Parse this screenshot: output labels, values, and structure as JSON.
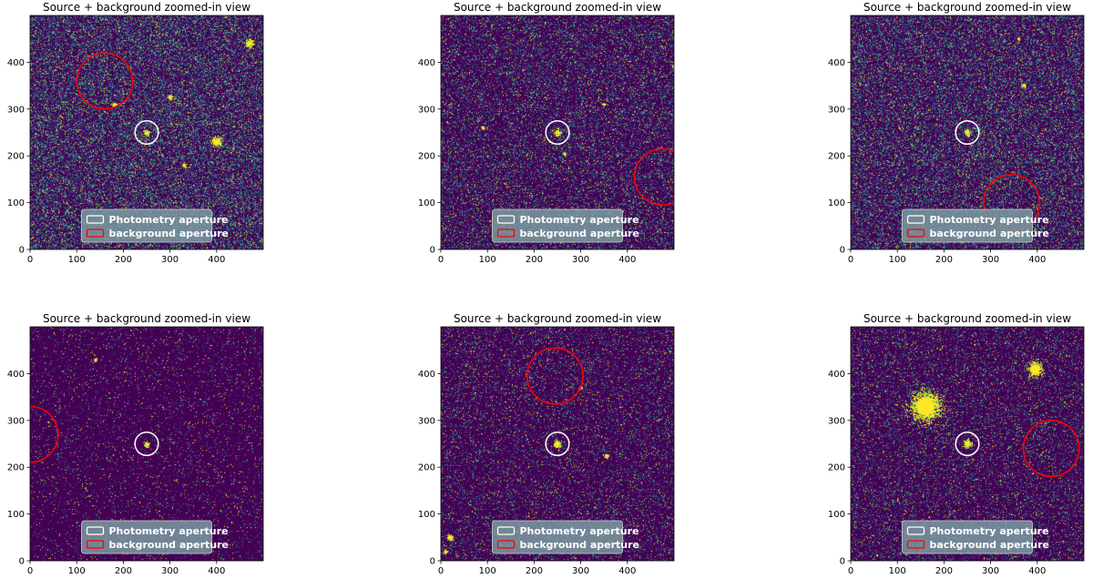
{
  "chart_data": [
    {
      "type": "heatmap",
      "title": "Source + background zoomed-in view",
      "xlim": [
        0,
        500
      ],
      "ylim": [
        0,
        500
      ],
      "xticks": [
        0,
        100,
        200,
        300,
        400
      ],
      "yticks": [
        0,
        100,
        200,
        300,
        400
      ],
      "colormap": "viridis",
      "background_colors": {
        "low": "#440154",
        "mid": "#3b528b",
        "high": "#5ec962",
        "peak": "#fde725"
      },
      "noise_level": 0.85,
      "photometry_aperture": {
        "x": 250,
        "y": 250,
        "r": 25,
        "color": "#ffffff"
      },
      "background_aperture": {
        "x": 160,
        "y": 360,
        "r": 60,
        "color": "#ff0000"
      },
      "sources": [
        [
          250,
          250,
          6
        ],
        [
          470,
          440,
          8
        ],
        [
          400,
          230,
          9
        ],
        [
          300,
          325,
          5
        ],
        [
          330,
          180,
          4
        ],
        [
          180,
          310,
          4
        ]
      ],
      "legend": {
        "location": "lower center",
        "entries": [
          "Photometry aperture",
          "background aperture"
        ]
      }
    },
    {
      "type": "heatmap",
      "title": "Source + background zoomed-in view",
      "xlim": [
        0,
        500
      ],
      "ylim": [
        0,
        500
      ],
      "xticks": [
        0,
        100,
        200,
        300,
        400
      ],
      "yticks": [
        0,
        100,
        200,
        300,
        400
      ],
      "colormap": "viridis",
      "background_colors": {
        "low": "#440154",
        "mid": "#3b528b",
        "high": "#5ec962",
        "peak": "#fde725"
      },
      "noise_level": 0.5,
      "photometry_aperture": {
        "x": 250,
        "y": 250,
        "r": 25,
        "color": "#ffffff"
      },
      "background_aperture": {
        "x": 475,
        "y": 155,
        "r": 60,
        "color": "#ff0000"
      },
      "sources": [
        [
          250,
          250,
          6
        ],
        [
          90,
          260,
          3
        ],
        [
          265,
          205,
          3
        ],
        [
          350,
          310,
          3
        ],
        [
          500,
          390,
          4
        ]
      ],
      "legend": {
        "location": "lower center",
        "entries": [
          "Photometry aperture",
          "background aperture"
        ]
      }
    },
    {
      "type": "heatmap",
      "title": "Source + background zoomed-in view",
      "xlim": [
        0,
        500
      ],
      "ylim": [
        0,
        500
      ],
      "xticks": [
        0,
        100,
        200,
        300,
        400
      ],
      "yticks": [
        0,
        100,
        200,
        300,
        400
      ],
      "colormap": "viridis",
      "background_colors": {
        "low": "#440154",
        "mid": "#3b528b",
        "high": "#5ec962",
        "peak": "#fde725"
      },
      "noise_level": 0.7,
      "photometry_aperture": {
        "x": 250,
        "y": 250,
        "r": 25,
        "color": "#ffffff"
      },
      "background_aperture": {
        "x": 345,
        "y": 100,
        "r": 60,
        "color": "#ff0000"
      },
      "sources": [
        [
          250,
          250,
          6
        ],
        [
          370,
          350,
          4
        ],
        [
          360,
          450,
          3
        ]
      ],
      "legend": {
        "location": "lower center",
        "entries": [
          "Photometry aperture",
          "background aperture"
        ]
      }
    },
    {
      "type": "heatmap",
      "title": "Source + background zoomed-in view",
      "xlim": [
        0,
        500
      ],
      "ylim": [
        0,
        500
      ],
      "xticks": [
        0,
        100,
        200,
        300,
        400
      ],
      "yticks": [
        0,
        100,
        200,
        300,
        400
      ],
      "colormap": "viridis",
      "background_colors": {
        "low": "#440154",
        "mid": "#3b528b",
        "high": "#5ec962",
        "peak": "#fde725"
      },
      "noise_level": 0.12,
      "photometry_aperture": {
        "x": 250,
        "y": 250,
        "r": 25,
        "color": "#ffffff"
      },
      "background_aperture": {
        "x": 0,
        "y": 270,
        "r": 60,
        "color": "#ff0000"
      },
      "sources": [
        [
          250,
          250,
          5
        ],
        [
          140,
          430,
          3
        ]
      ],
      "legend": {
        "location": "lower center",
        "entries": [
          "Photometry aperture",
          "background aperture"
        ]
      }
    },
    {
      "type": "heatmap",
      "title": "Source + background zoomed-in view",
      "xlim": [
        0,
        500
      ],
      "ylim": [
        0,
        500
      ],
      "xticks": [
        0,
        100,
        200,
        300,
        400
      ],
      "yticks": [
        0,
        100,
        200,
        300,
        400
      ],
      "colormap": "viridis",
      "background_colors": {
        "low": "#440154",
        "mid": "#3b528b",
        "high": "#5ec962",
        "peak": "#fde725"
      },
      "noise_level": 0.3,
      "photometry_aperture": {
        "x": 250,
        "y": 250,
        "r": 25,
        "color": "#ffffff"
      },
      "background_aperture": {
        "x": 245,
        "y": 395,
        "r": 60,
        "color": "#ff0000"
      },
      "sources": [
        [
          250,
          250,
          7
        ],
        [
          355,
          225,
          4
        ],
        [
          300,
          370,
          3
        ],
        [
          20,
          50,
          6
        ],
        [
          10,
          20,
          4
        ]
      ],
      "legend": {
        "location": "lower center",
        "entries": [
          "Photometry aperture",
          "background aperture"
        ]
      }
    },
    {
      "type": "heatmap",
      "title": "Source + background zoomed-in view",
      "xlim": [
        0,
        500
      ],
      "ylim": [
        0,
        500
      ],
      "xticks": [
        0,
        100,
        200,
        300,
        400
      ],
      "yticks": [
        0,
        100,
        200,
        300,
        400
      ],
      "colormap": "viridis",
      "background_colors": {
        "low": "#440154",
        "mid": "#3b528b",
        "high": "#5ec962",
        "peak": "#fde725"
      },
      "noise_level": 0.35,
      "photometry_aperture": {
        "x": 250,
        "y": 250,
        "r": 25,
        "color": "#ffffff"
      },
      "background_aperture": {
        "x": 430,
        "y": 240,
        "r": 60,
        "color": "#ff0000"
      },
      "sources": [
        [
          250,
          250,
          8
        ],
        [
          160,
          330,
          28
        ],
        [
          395,
          410,
          14
        ]
      ],
      "legend": {
        "location": "lower center",
        "entries": [
          "Photometry aperture",
          "background aperture"
        ]
      }
    }
  ]
}
